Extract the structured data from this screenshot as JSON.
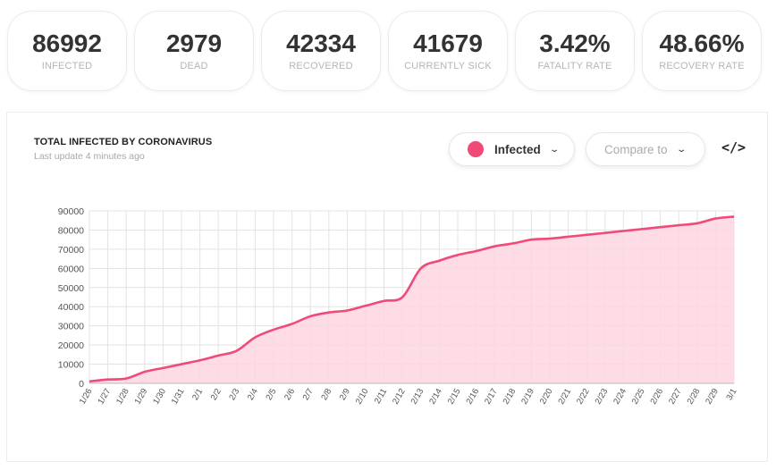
{
  "stats": [
    {
      "value": "86992",
      "label": "INFECTED"
    },
    {
      "value": "2979",
      "label": "DEAD"
    },
    {
      "value": "42334",
      "label": "RECOVERED"
    },
    {
      "value": "41679",
      "label": "CURRENTLY SICK"
    },
    {
      "value": "3.42%",
      "label": "FATALITY RATE"
    },
    {
      "value": "48.66%",
      "label": "RECOVERY RATE"
    }
  ],
  "card": {
    "title": "TOTAL INFECTED BY CORONAVIRUS",
    "subtitle": "Last update 4 minutes ago",
    "series_selector": "Infected",
    "compare_selector": "Compare to",
    "embed_label": "</>"
  },
  "colors": {
    "accent": "#f04a78",
    "area_fill": "#fdd6e0",
    "grid": "#e3e3e3"
  },
  "chart_data": {
    "type": "area",
    "title": "TOTAL INFECTED BY CORONAVIRUS",
    "categories": [
      "1/26",
      "1/27",
      "1/28",
      "1/29",
      "1/30",
      "1/31",
      "2/1",
      "2/2",
      "2/3",
      "2/4",
      "2/5",
      "2/6",
      "2/7",
      "2/8",
      "2/9",
      "2/10",
      "2/11",
      "2/12",
      "2/13",
      "2/14",
      "2/15",
      "2/16",
      "2/17",
      "2/18",
      "2/19",
      "2/20",
      "2/21",
      "2/22",
      "2/23",
      "2/24",
      "2/25",
      "2/26",
      "2/27",
      "2/28",
      "2/29",
      "3/1"
    ],
    "series": [
      {
        "values": [
          1000,
          2000,
          2500,
          6000,
          8000,
          10000,
          12000,
          14500,
          17000,
          24000,
          28000,
          31000,
          35000,
          37000,
          38000,
          40500,
          43000,
          45000,
          60000,
          64000,
          67000,
          69000,
          71500,
          73000,
          75000,
          75500,
          76500,
          77500,
          78500,
          79500,
          80500,
          81500,
          82500,
          83500,
          86000,
          87000
        ]
      }
    ],
    "xlabel": "",
    "ylabel": "",
    "ylim": [
      0,
      90000
    ],
    "yticks": [
      0,
      10000,
      20000,
      30000,
      40000,
      50000,
      60000,
      70000,
      80000,
      90000
    ],
    "grid": true,
    "legend": "none"
  }
}
